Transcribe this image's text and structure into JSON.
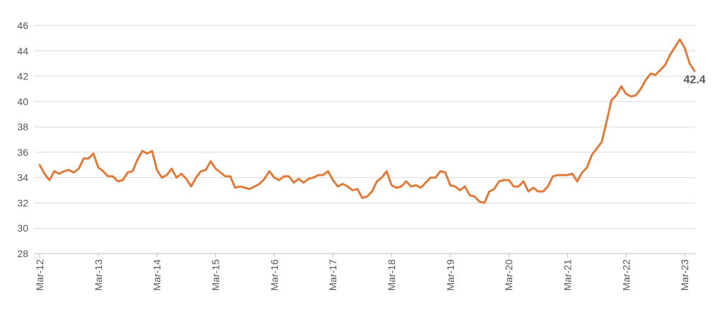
{
  "chart_data": {
    "type": "line",
    "title": "",
    "xlabel": "",
    "ylabel": "",
    "ylim": [
      28,
      46
    ],
    "yticks": [
      28,
      30,
      32,
      34,
      36,
      38,
      40,
      42,
      44,
      46
    ],
    "xtick_labels": [
      "Mar-12",
      "Mar-13",
      "Mar-14",
      "Mar-15",
      "Mar-16",
      "Mar-17",
      "Mar-18",
      "Mar-19",
      "Mar-20",
      "Mar-21",
      "Mar-22",
      "Mar-23"
    ],
    "grid": "horizontal",
    "legend": "none",
    "end_label": "42.4",
    "series": [
      {
        "color": "#E07B39",
        "values": [
          35.0,
          34.3,
          33.8,
          34.5,
          34.3,
          34.5,
          34.6,
          34.4,
          34.7,
          35.5,
          35.5,
          35.9,
          34.8,
          34.5,
          34.1,
          34.1,
          33.7,
          33.8,
          34.4,
          34.5,
          35.4,
          36.1,
          35.9,
          36.1,
          34.6,
          34.0,
          34.2,
          34.7,
          34.0,
          34.3,
          33.9,
          33.3,
          34.0,
          34.5,
          34.6,
          35.3,
          34.7,
          34.4,
          34.1,
          34.1,
          33.2,
          33.3,
          33.2,
          33.1,
          33.3,
          33.5,
          33.9,
          34.5,
          34.0,
          33.8,
          34.1,
          34.1,
          33.6,
          33.9,
          33.6,
          33.9,
          34.0,
          34.2,
          34.2,
          34.5,
          33.8,
          33.3,
          33.5,
          33.3,
          33.0,
          33.1,
          32.4,
          32.5,
          32.9,
          33.7,
          34.0,
          34.5,
          33.4,
          33.2,
          33.3,
          33.7,
          33.3,
          33.4,
          33.2,
          33.6,
          34.0,
          34.0,
          34.5,
          34.4,
          33.4,
          33.3,
          33.0,
          33.3,
          32.6,
          32.5,
          32.1,
          32.0,
          32.9,
          33.1,
          33.7,
          33.8,
          33.8,
          33.3,
          33.3,
          33.7,
          32.9,
          33.2,
          32.9,
          32.9,
          33.3,
          34.1,
          34.2,
          34.2,
          34.2,
          34.3,
          33.7,
          34.4,
          34.8,
          35.8,
          36.3,
          36.8,
          38.4,
          40.1,
          40.5,
          41.2,
          40.6,
          40.4,
          40.5,
          41.0,
          41.7,
          42.2,
          42.1,
          42.5,
          42.9,
          43.7,
          44.3,
          44.9,
          44.2,
          43.0,
          42.4
        ]
      }
    ]
  }
}
